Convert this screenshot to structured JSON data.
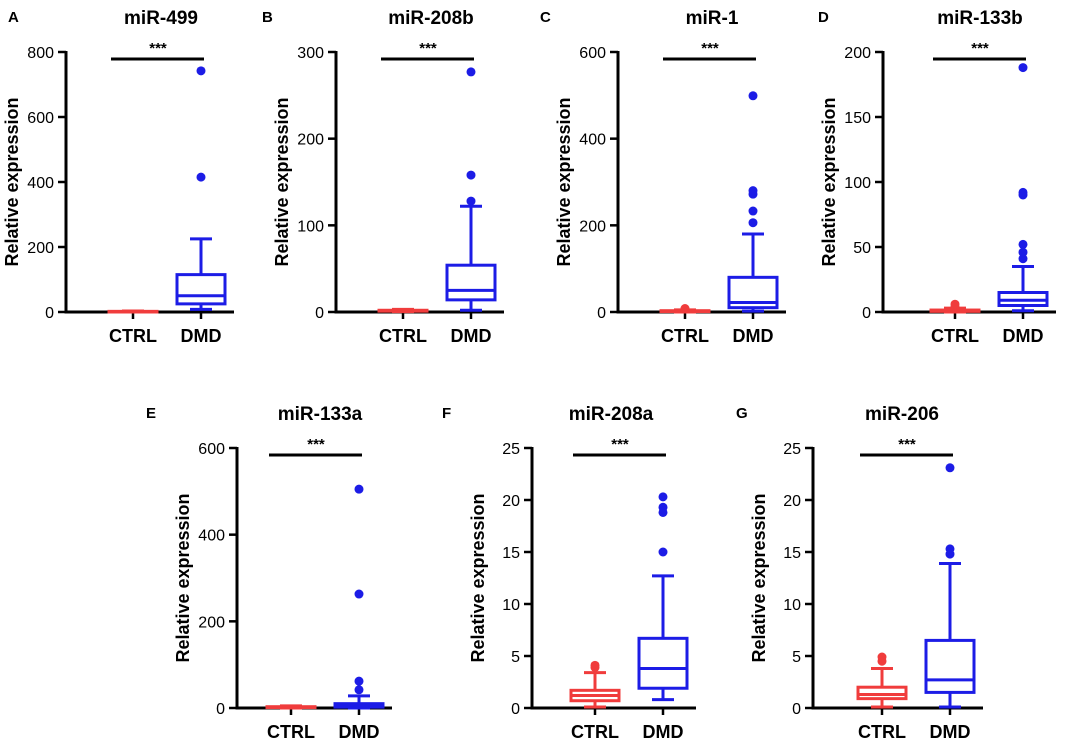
{
  "figure": {
    "group_labels": [
      "CTRL",
      "DMD"
    ],
    "ylabel": "Relative expression",
    "significance": "***",
    "colors": {
      "ctrl": "#f03c3c",
      "dmd": "#1c1ce6",
      "axis": "#000000"
    }
  },
  "chart_data": [
    {
      "panel": "A",
      "type": "boxplot",
      "title": "miR-499",
      "ylim": [
        0,
        800
      ],
      "yticks": [
        "0",
        "200",
        "400",
        "600",
        "800"
      ],
      "ytick_values": [
        0,
        200,
        400,
        600,
        800
      ],
      "xlabel": "",
      "ylabel": "Relative expression",
      "categories": [
        "CTRL",
        "DMD"
      ],
      "series": [
        {
          "name": "CTRL",
          "whisker_low": 0,
          "q1": 0,
          "median": 1,
          "q3": 2,
          "whisker_high": 3,
          "outliers": []
        },
        {
          "name": "DMD",
          "whisker_low": 8,
          "q1": 25,
          "median": 50,
          "q3": 115,
          "whisker_high": 225,
          "outliers": [
            415,
            742
          ]
        }
      ],
      "annotation": "***"
    },
    {
      "panel": "B",
      "type": "boxplot",
      "title": "miR-208b",
      "ylim": [
        0,
        300
      ],
      "yticks": [
        "0",
        "100",
        "200",
        "300"
      ],
      "ytick_values": [
        0,
        100,
        200,
        300
      ],
      "xlabel": "",
      "ylabel": "Relative expression",
      "categories": [
        "CTRL",
        "DMD"
      ],
      "series": [
        {
          "name": "CTRL",
          "whisker_low": 0.5,
          "q1": 1,
          "median": 1.5,
          "q3": 2,
          "whisker_high": 3,
          "outliers": []
        },
        {
          "name": "DMD",
          "whisker_low": 2,
          "q1": 14,
          "median": 25,
          "q3": 54,
          "whisker_high": 122,
          "outliers": [
            128,
            158,
            277
          ]
        }
      ],
      "annotation": "***"
    },
    {
      "panel": "C",
      "type": "boxplot",
      "title": "miR-1",
      "ylim": [
        0,
        600
      ],
      "yticks": [
        "0",
        "200",
        "400",
        "600"
      ],
      "ytick_values": [
        0,
        200,
        400,
        600
      ],
      "xlabel": "",
      "ylabel": "Relative expression",
      "categories": [
        "CTRL",
        "DMD"
      ],
      "series": [
        {
          "name": "CTRL",
          "whisker_low": 0,
          "q1": 1,
          "median": 2,
          "q3": 3,
          "whisker_high": 5,
          "outliers": [
            8
          ]
        },
        {
          "name": "DMD",
          "whisker_low": 2,
          "q1": 10,
          "median": 22,
          "q3": 80,
          "whisker_high": 180,
          "outliers": [
            206,
            233,
            272,
            280,
            499
          ]
        }
      ],
      "annotation": "***"
    },
    {
      "panel": "D",
      "type": "boxplot",
      "title": "miR-133b",
      "ylim": [
        0,
        200
      ],
      "yticks": [
        "0",
        "50",
        "100",
        "150",
        "200"
      ],
      "ytick_values": [
        0,
        50,
        100,
        150,
        200
      ],
      "xlabel": "",
      "ylabel": "Relative expression",
      "categories": [
        "CTRL",
        "DMD"
      ],
      "series": [
        {
          "name": "CTRL",
          "whisker_low": 0,
          "q1": 0.5,
          "median": 1,
          "q3": 1.5,
          "whisker_high": 3,
          "outliers": [
            4,
            6
          ]
        },
        {
          "name": "DMD",
          "whisker_low": 1,
          "q1": 5,
          "median": 9,
          "q3": 15,
          "whisker_high": 35,
          "outliers": [
            41,
            46,
            52,
            90,
            92,
            188
          ]
        }
      ],
      "annotation": "***"
    },
    {
      "panel": "E",
      "type": "boxplot",
      "title": "miR-133a",
      "ylim": [
        0,
        600
      ],
      "yticks": [
        "0",
        "200",
        "400",
        "600"
      ],
      "ytick_values": [
        0,
        200,
        400,
        600
      ],
      "xlabel": "",
      "ylabel": "Relative expression",
      "categories": [
        "CTRL",
        "DMD"
      ],
      "series": [
        {
          "name": "CTRL",
          "whisker_low": 0,
          "q1": 1,
          "median": 2,
          "q3": 3,
          "whisker_high": 5,
          "outliers": []
        },
        {
          "name": "DMD",
          "whisker_low": 0,
          "q1": 2,
          "median": 5,
          "q3": 10,
          "whisker_high": 28,
          "outliers": [
            42,
            62,
            263,
            505
          ]
        }
      ],
      "annotation": "***"
    },
    {
      "panel": "F",
      "type": "boxplot",
      "title": "miR-208a",
      "ylim": [
        0,
        25
      ],
      "yticks": [
        "0",
        "5",
        "10",
        "15",
        "20",
        "25"
      ],
      "ytick_values": [
        0,
        5,
        10,
        15,
        20,
        25
      ],
      "xlabel": "",
      "ylabel": "Relative expression",
      "categories": [
        "CTRL",
        "DMD"
      ],
      "series": [
        {
          "name": "CTRL",
          "whisker_low": 0.1,
          "q1": 0.7,
          "median": 1.2,
          "q3": 1.7,
          "whisker_high": 3.4,
          "outliers": [
            3.9,
            4.1
          ]
        },
        {
          "name": "DMD",
          "whisker_low": 0.8,
          "q1": 1.9,
          "median": 3.8,
          "q3": 6.7,
          "whisker_high": 12.7,
          "outliers": [
            15.0,
            18.8,
            19.3,
            20.3
          ]
        }
      ],
      "annotation": "***"
    },
    {
      "panel": "G",
      "type": "boxplot",
      "title": "miR-206",
      "ylim": [
        0,
        25
      ],
      "yticks": [
        "0",
        "5",
        "10",
        "15",
        "20",
        "25"
      ],
      "ytick_values": [
        0,
        5,
        10,
        15,
        20,
        25
      ],
      "xlabel": "",
      "ylabel": "Relative expression",
      "categories": [
        "CTRL",
        "DMD"
      ],
      "series": [
        {
          "name": "CTRL",
          "whisker_low": 0.1,
          "q1": 0.9,
          "median": 1.3,
          "q3": 2.0,
          "whisker_high": 3.8,
          "outliers": [
            4.5,
            4.9
          ]
        },
        {
          "name": "DMD",
          "whisker_low": 0.1,
          "q1": 1.5,
          "median": 2.7,
          "q3": 6.5,
          "whisker_high": 13.9,
          "outliers": [
            14.8,
            15.3,
            23.1
          ]
        }
      ],
      "annotation": "***"
    }
  ]
}
